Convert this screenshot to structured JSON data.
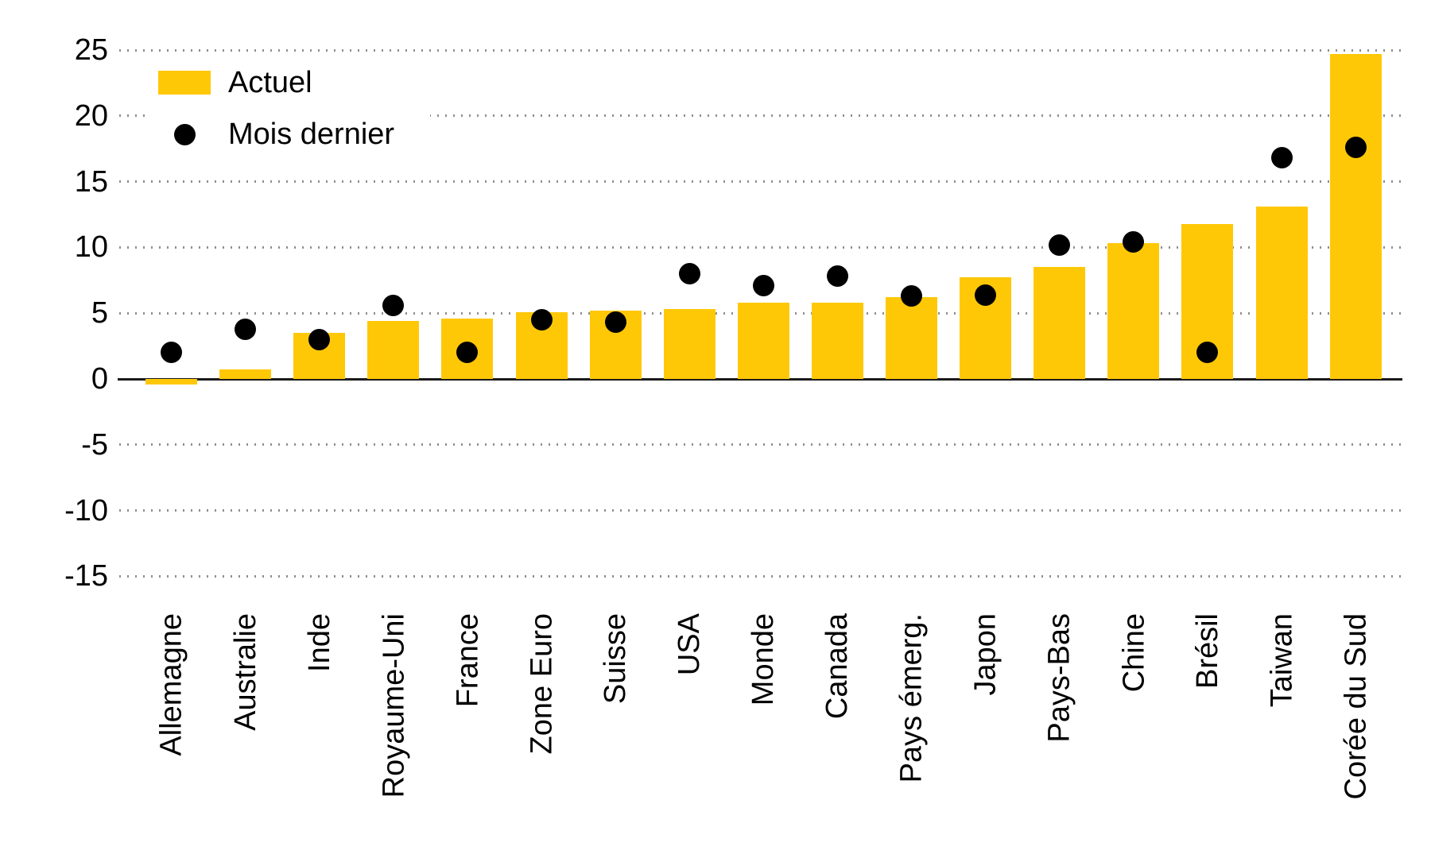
{
  "chart_data": {
    "type": "bar",
    "title": "",
    "xlabel": "",
    "ylabel": "",
    "categories": [
      "Allemagne",
      "Australie",
      "Inde",
      "Royaume-Uni",
      "France",
      "Zone Euro",
      "Suisse",
      "USA",
      "Monde",
      "Canada",
      "Pays émerg.",
      "Japon",
      "Pays-Bas",
      "Chine",
      "Brésil",
      "Taiwan",
      "Corée du Sud"
    ],
    "series": [
      {
        "name": "Actuel",
        "kind": "bar",
        "color": "#FFC807",
        "values": [
          -0.4,
          0.7,
          3.5,
          4.4,
          4.6,
          5.1,
          5.2,
          5.3,
          5.8,
          5.8,
          6.2,
          7.7,
          8.5,
          10.3,
          11.8,
          13.1,
          24.7
        ]
      },
      {
        "name": "Mois dernier",
        "kind": "scatter",
        "color": "#000000",
        "values": [
          2.0,
          3.8,
          3.0,
          5.6,
          2.0,
          4.5,
          4.3,
          8.0,
          7.1,
          7.8,
          6.3,
          6.4,
          10.2,
          10.4,
          2.0,
          16.8,
          17.6
        ]
      }
    ],
    "ylim": [
      -15,
      25
    ],
    "yticks": [
      25,
      20,
      15,
      10,
      5,
      0,
      -5,
      -10,
      -15
    ],
    "grid": "dotted-horizontal",
    "legend_position": "top-left"
  },
  "colors": {
    "bar": "#FFC807",
    "dot": "#000000",
    "grid": "#8f8f8f",
    "axis": "#1a1a1a",
    "background": "#ffffff",
    "text": "#000000"
  }
}
